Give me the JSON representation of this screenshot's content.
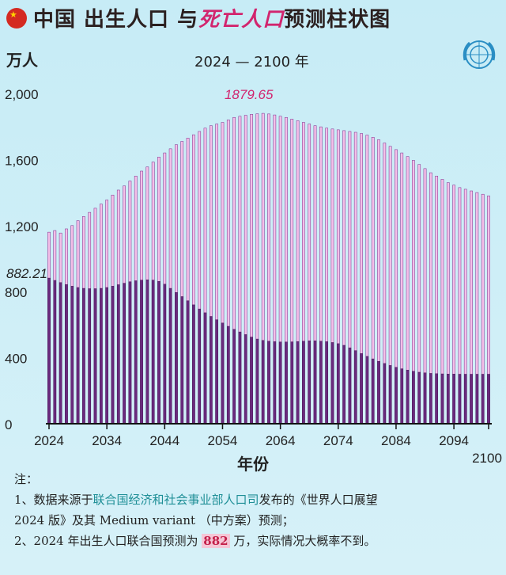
{
  "header": {
    "title_part1": "中国 出生人口 与 ",
    "title_part2": "死亡人口",
    "title_part3": " 预测柱状图",
    "unit": "万人",
    "subtitle": "2024 — 2100 年"
  },
  "notes": {
    "heading": "注：",
    "line1_prefix": "1、数据来源于",
    "line1_source": "联合国经济和社会事业部人口司",
    "line1_suffix": "发布的《世界人口展望",
    "line2": "2024 版》及其 Medium variant （中方案）预测；",
    "line3_prefix": "2、2024 年出生人口联合国预测为 ",
    "line3_value": "882",
    "line3_suffix": " 万，实际情况大概率不到。"
  },
  "colors": {
    "deaths": "#f4bfe8",
    "births": "#6a2a7e",
    "accent": "#d2256e",
    "axis": "#111111"
  },
  "icons": {
    "flag": "china-flag-icon",
    "emblem": "un-emblem-icon"
  },
  "chart_data": {
    "type": "bar",
    "xlabel": "年份",
    "ylabel": "万人",
    "ylim": [
      0,
      2000
    ],
    "yticks": [
      0,
      400,
      800,
      "1,200",
      "1,600",
      "2,000"
    ],
    "xticks": [
      "2024",
      "2034",
      "2044",
      "2054",
      "2064",
      "2074",
      "2084",
      "2094",
      "2100"
    ],
    "annotations": [
      {
        "label": "1879.65",
        "series": "deaths",
        "year": 2061
      },
      {
        "label": "882.21",
        "series": "births",
        "year": 2024
      }
    ],
    "series": [
      {
        "key": "deaths",
        "color": "#f4bfe8",
        "years": [
          2024,
          2025,
          2026,
          2027,
          2028,
          2029,
          2030,
          2031,
          2032,
          2033,
          2034,
          2035,
          2036,
          2037,
          2038,
          2039,
          2040,
          2041,
          2042,
          2043,
          2044,
          2045,
          2046,
          2047,
          2048,
          2049,
          2050,
          2051,
          2052,
          2053,
          2054,
          2055,
          2056,
          2057,
          2058,
          2059,
          2060,
          2061,
          2062,
          2063,
          2064,
          2065,
          2066,
          2067,
          2068,
          2069,
          2070,
          2071,
          2072,
          2073,
          2074,
          2075,
          2076,
          2077,
          2078,
          2079,
          2080,
          2081,
          2082,
          2083,
          2084,
          2085,
          2086,
          2087,
          2088,
          2089,
          2090,
          2091,
          2092,
          2093,
          2094,
          2095,
          2096,
          2097,
          2098,
          2099,
          2100
        ],
        "values": [
          1160,
          1170,
          1155,
          1180,
          1200,
          1230,
          1255,
          1280,
          1305,
          1330,
          1355,
          1385,
          1415,
          1440,
          1470,
          1500,
          1530,
          1555,
          1585,
          1615,
          1640,
          1665,
          1690,
          1710,
          1730,
          1750,
          1770,
          1790,
          1805,
          1815,
          1825,
          1840,
          1855,
          1862,
          1868,
          1874,
          1877,
          1879.65,
          1876,
          1870,
          1862,
          1855,
          1845,
          1835,
          1825,
          1815,
          1805,
          1798,
          1790,
          1785,
          1780,
          1775,
          1770,
          1765,
          1758,
          1748,
          1735,
          1720,
          1700,
          1680,
          1660,
          1640,
          1618,
          1595,
          1570,
          1545,
          1520,
          1500,
          1480,
          1460,
          1445,
          1430,
          1420,
          1410,
          1400,
          1390,
          1380
        ]
      },
      {
        "key": "births",
        "color": "#6a2a7e",
        "years": [
          2024,
          2025,
          2026,
          2027,
          2028,
          2029,
          2030,
          2031,
          2032,
          2033,
          2034,
          2035,
          2036,
          2037,
          2038,
          2039,
          2040,
          2041,
          2042,
          2043,
          2044,
          2045,
          2046,
          2047,
          2048,
          2049,
          2050,
          2051,
          2052,
          2053,
          2054,
          2055,
          2056,
          2057,
          2058,
          2059,
          2060,
          2061,
          2062,
          2063,
          2064,
          2065,
          2066,
          2067,
          2068,
          2069,
          2070,
          2071,
          2072,
          2073,
          2074,
          2075,
          2076,
          2077,
          2078,
          2079,
          2080,
          2081,
          2082,
          2083,
          2084,
          2085,
          2086,
          2087,
          2088,
          2089,
          2090,
          2091,
          2092,
          2093,
          2094,
          2095,
          2096,
          2097,
          2098,
          2099,
          2100
        ],
        "values": [
          882.21,
          868,
          855,
          843,
          833,
          825,
          820,
          818,
          818,
          820,
          825,
          833,
          842,
          851,
          860,
          866,
          870,
          872,
          870,
          862,
          845,
          820,
          795,
          770,
          745,
          720,
          695,
          672,
          650,
          630,
          610,
          590,
          572,
          556,
          540,
          525,
          513,
          505,
          500,
          497,
          495,
          495,
          496,
          498,
          500,
          502,
          502,
          500,
          497,
          492,
          485,
          475,
          460,
          443,
          425,
          408,
          393,
          378,
          365,
          353,
          342,
          333,
          325,
          318,
          312,
          308,
          305,
          303,
          302,
          301,
          301,
          300,
          300,
          300,
          300,
          300,
          300
        ]
      }
    ]
  }
}
